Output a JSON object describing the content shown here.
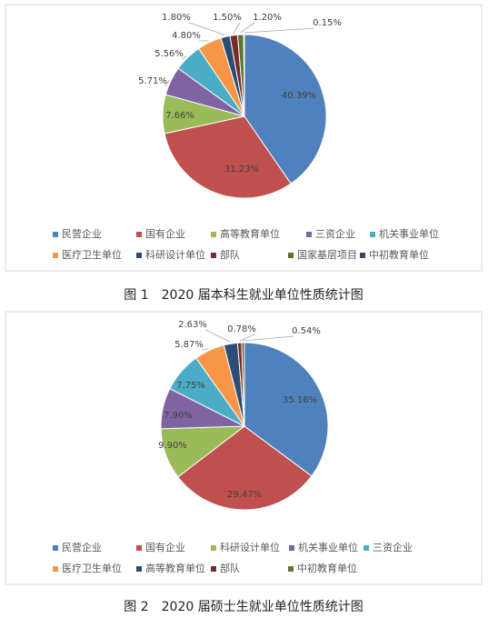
{
  "chart_data": [
    {
      "type": "pie",
      "title": "图 1　2020 届本科生就业单位性质统计图",
      "categories": [
        "民营企业",
        "国有企业",
        "高等教育单位",
        "三资企业",
        "机关事业单位",
        "医疗卫生单位",
        "科研设计单位",
        "部队",
        "国家基层项目",
        "中初教育单位"
      ],
      "values": [
        40.39,
        31.23,
        7.66,
        5.71,
        5.56,
        4.8,
        1.8,
        1.5,
        1.2,
        0.15
      ],
      "value_labels": [
        "40.39%",
        "31.23%",
        "7.66%",
        "5.71%",
        "5.56%",
        "4.80%",
        "1.80%",
        "1.50%",
        "1.20%",
        "0.15%"
      ],
      "colors": [
        "#4f81bd",
        "#c0504d",
        "#9bbb59",
        "#8064a2",
        "#4bacc6",
        "#f79646",
        "#2c4d75",
        "#772c2a",
        "#5f7530",
        "#4d3b62"
      ],
      "legend": "bottom"
    },
    {
      "type": "pie",
      "title": "图 2　2020 届硕士生就业单位性质统计图",
      "categories": [
        "民营企业",
        "国有企业",
        "科研设计单位",
        "机关事业单位",
        "三资企业",
        "医疗卫生单位",
        "高等教育单位",
        "部队",
        "中初教育单位"
      ],
      "values": [
        35.16,
        29.47,
        9.9,
        7.9,
        7.75,
        5.87,
        2.63,
        0.78,
        0.54
      ],
      "value_labels": [
        "35.16%",
        "29.47%",
        "9.90%",
        "7.90%",
        "7.75%",
        "5.87%",
        "2.63%",
        "0.78%",
        "0.54%"
      ],
      "colors": [
        "#4f81bd",
        "#c0504d",
        "#9bbb59",
        "#8064a2",
        "#4bacc6",
        "#f79646",
        "#2c4d75",
        "#772c2a",
        "#5f7530"
      ],
      "legend": "bottom"
    }
  ]
}
